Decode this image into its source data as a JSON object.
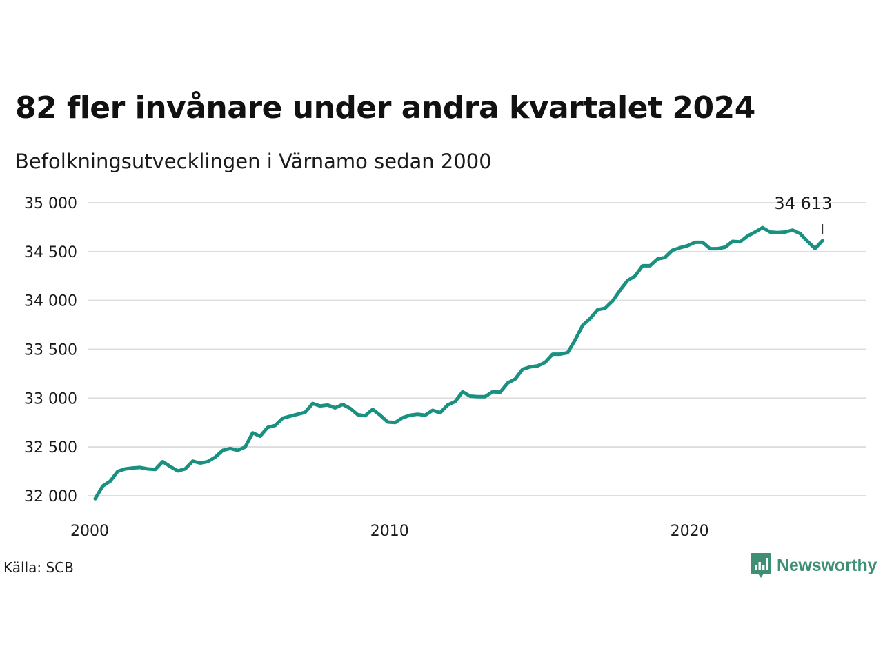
{
  "title": "82 fler invånare under andra kvartalet 2024",
  "subtitle": "Befolkningsutvecklingen i Värnamo sedan 2000",
  "source": "Källa: SCB",
  "brand": {
    "name": "Newsworthy",
    "color": "#3f8f74",
    "icon": "newsworthy-logo-icon"
  },
  "chart_data": {
    "type": "line",
    "title": "82 fler invånare under andra kvartalet 2024",
    "subtitle": "Befolkningsutvecklingen i Värnamo sedan 2000",
    "xlabel": "",
    "ylabel": "",
    "xlim": [
      2000,
      2025
    ],
    "ylim": [
      32000,
      35000
    ],
    "xticks": [
      2000,
      2010,
      2020
    ],
    "xtick_labels": [
      "2000",
      "2010",
      "2020"
    ],
    "yticks": [
      32000,
      32500,
      33000,
      33500,
      34000,
      34500,
      35000
    ],
    "ytick_labels": [
      "32 000",
      "32 500",
      "33 000",
      "33 500",
      "34 000",
      "34 500",
      "35 000"
    ],
    "grid": true,
    "legend": "none",
    "line_color": "#1a9080",
    "end_label": "34 613",
    "series": [
      {
        "x": [
          2000.0,
          2000.25,
          2000.5,
          2000.75,
          2001.0,
          2001.25,
          2001.5,
          2001.75,
          2002.0,
          2002.25,
          2002.5,
          2002.75,
          2003.0,
          2003.25,
          2003.5,
          2003.75,
          2004.0,
          2004.25,
          2004.5,
          2004.75,
          2005.0,
          2005.25,
          2005.5,
          2005.75,
          2006.0,
          2006.25,
          2006.5,
          2006.75,
          2007.0,
          2007.25,
          2007.5,
          2007.75,
          2008.0,
          2008.25,
          2008.5,
          2008.75,
          2009.0,
          2009.25,
          2009.5,
          2009.75,
          2010.0,
          2010.25,
          2010.5,
          2010.75,
          2011.0,
          2011.25,
          2011.5,
          2011.75,
          2012.0,
          2012.25,
          2012.5,
          2012.75,
          2013.0,
          2013.25,
          2013.5,
          2013.75,
          2014.0,
          2014.25,
          2014.5,
          2014.75,
          2015.0,
          2015.25,
          2015.5,
          2015.75,
          2016.0,
          2016.25,
          2016.5,
          2016.75,
          2017.0,
          2017.25,
          2017.5,
          2017.75,
          2018.0,
          2018.25,
          2018.5,
          2018.75,
          2019.0,
          2019.25,
          2019.5,
          2019.75,
          2020.0,
          2020.25,
          2020.5,
          2020.75,
          2021.0,
          2021.25,
          2021.5,
          2021.75,
          2022.0,
          2022.25,
          2022.5,
          2022.75,
          2023.0,
          2023.25,
          2023.5,
          2023.75,
          2024.0,
          2024.25
        ],
        "values": [
          31970,
          32100,
          32150,
          32250,
          32275,
          32285,
          32290,
          32275,
          32270,
          32350,
          32300,
          32255,
          32275,
          32355,
          32335,
          32350,
          32395,
          32465,
          32485,
          32465,
          32500,
          32645,
          32610,
          32700,
          32720,
          32795,
          32815,
          32835,
          32855,
          32945,
          32920,
          32930,
          32900,
          32935,
          32895,
          32830,
          32820,
          32885,
          32825,
          32755,
          32750,
          32800,
          32825,
          32835,
          32825,
          32875,
          32850,
          32930,
          32965,
          33065,
          33020,
          33015,
          33015,
          33065,
          33060,
          33155,
          33195,
          33295,
          33320,
          33330,
          33365,
          33450,
          33450,
          33465,
          33595,
          33745,
          33815,
          33905,
          33920,
          33995,
          34105,
          34205,
          34250,
          34355,
          34355,
          34425,
          34440,
          34515,
          34540,
          34560,
          34595,
          34595,
          34530,
          34530,
          34545,
          34605,
          34600,
          34660,
          34700,
          34745,
          34700,
          34695,
          34700,
          34720,
          34685,
          34605,
          34531,
          34613
        ]
      }
    ]
  }
}
